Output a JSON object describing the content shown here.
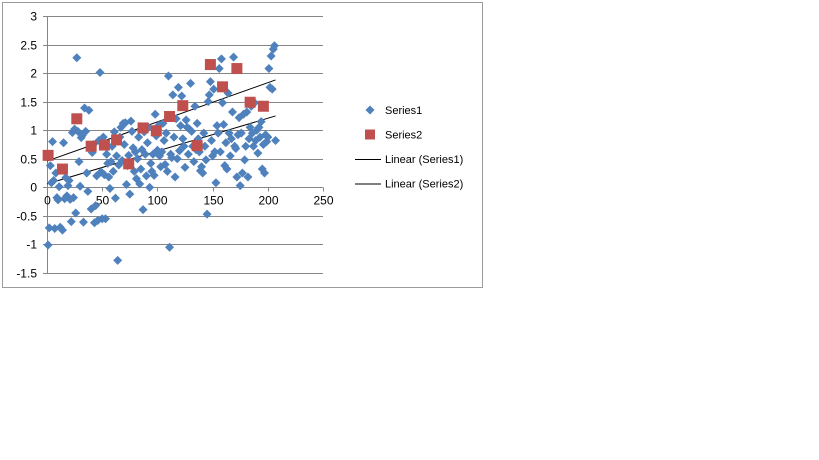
{
  "chart_data": {
    "type": "scatter",
    "title": "",
    "xlabel": "",
    "ylabel": "",
    "xlim": [
      0,
      250
    ],
    "ylim": [
      -1.5,
      3
    ],
    "xticks": [
      0,
      50,
      100,
      150,
      200,
      250
    ],
    "yticks": [
      3,
      2.5,
      2,
      1.5,
      1,
      0.5,
      0,
      -0.5,
      -1,
      -1.5
    ],
    "grid": "horizontal",
    "legend_position": "right",
    "series": [
      {
        "name": "Series1",
        "marker": "diamond",
        "color": "#4F81BD",
        "points": [
          [
            1,
            -1.01
          ],
          [
            2,
            -0.71
          ],
          [
            3,
            0.38
          ],
          [
            4,
            0.08
          ],
          [
            5,
            0.8
          ],
          [
            6,
            0.12
          ],
          [
            7,
            -0.72
          ],
          [
            8,
            0.25
          ],
          [
            9,
            -0.18
          ],
          [
            10,
            -0.22
          ],
          [
            11,
            0.01
          ],
          [
            12,
            -0.7
          ],
          [
            13,
            0.32
          ],
          [
            14,
            -0.75
          ],
          [
            15,
            0.78
          ],
          [
            16,
            -0.2
          ],
          [
            17,
            0.17
          ],
          [
            18,
            -0.15
          ],
          [
            19,
            0.03
          ],
          [
            20,
            0.12
          ],
          [
            21,
            -0.21
          ],
          [
            22,
            -0.6
          ],
          [
            23,
            0.96
          ],
          [
            24,
            -0.18
          ],
          [
            25,
            1.02
          ],
          [
            26,
            -0.45
          ],
          [
            27,
            2.27
          ],
          [
            28,
            0.98
          ],
          [
            29,
            0.45
          ],
          [
            30,
            0.02
          ],
          [
            31,
            0.87
          ],
          [
            32,
            0.91
          ],
          [
            33,
            -0.61
          ],
          [
            34,
            1.39
          ],
          [
            35,
            0.98
          ],
          [
            36,
            0.25
          ],
          [
            37,
            -0.07
          ],
          [
            38,
            1.35
          ],
          [
            39,
            0.68
          ],
          [
            40,
            -0.38
          ],
          [
            41,
            0.61
          ],
          [
            42,
            0.75
          ],
          [
            43,
            -0.62
          ],
          [
            44,
            -0.32
          ],
          [
            45,
            0.2
          ],
          [
            46,
            -0.58
          ],
          [
            47,
            0.82
          ],
          [
            48,
            2.01
          ],
          [
            49,
            0.27
          ],
          [
            50,
            -0.55
          ],
          [
            51,
            0.88
          ],
          [
            52,
            0.22
          ],
          [
            53,
            -0.55
          ],
          [
            54,
            0.58
          ],
          [
            55,
            0.42
          ],
          [
            56,
            0.18
          ],
          [
            57,
            -0.02
          ],
          [
            58,
            0.45
          ],
          [
            59,
            0.72
          ],
          [
            60,
            0.28
          ],
          [
            61,
            0.97
          ],
          [
            62,
            -0.19
          ],
          [
            63,
            0.55
          ],
          [
            64,
            -1.28
          ],
          [
            65,
            0.39
          ],
          [
            66,
            0.88
          ],
          [
            67,
            1.05
          ],
          [
            68,
            0.47
          ],
          [
            69,
            1.12
          ],
          [
            70,
            0.75
          ],
          [
            71,
            1.13
          ],
          [
            72,
            0.05
          ],
          [
            73,
            0.38
          ],
          [
            74,
            0.56
          ],
          [
            75,
            -0.12
          ],
          [
            76,
            1.16
          ],
          [
            77,
            0.98
          ],
          [
            78,
            0.69
          ],
          [
            79,
            0.28
          ],
          [
            80,
            0.62
          ],
          [
            81,
            0.15
          ],
          [
            82,
            0.5
          ],
          [
            83,
            0.88
          ],
          [
            84,
            0.06
          ],
          [
            85,
            0.32
          ],
          [
            86,
            0.66
          ],
          [
            87,
            -0.39
          ],
          [
            88,
            0.97
          ],
          [
            89,
            0.58
          ],
          [
            90,
            0.2
          ],
          [
            91,
            0.78
          ],
          [
            92,
            1.05
          ],
          [
            93,
            0.0
          ],
          [
            94,
            0.42
          ],
          [
            95,
            0.28
          ],
          [
            96,
            0.58
          ],
          [
            97,
            0.21
          ],
          [
            98,
            1.28
          ],
          [
            99,
            0.9
          ],
          [
            100,
            0.65
          ],
          [
            101,
            1.08
          ],
          [
            102,
            0.55
          ],
          [
            103,
            0.36
          ],
          [
            104,
            0.62
          ],
          [
            105,
            1.12
          ],
          [
            106,
            0.82
          ],
          [
            107,
            0.4
          ],
          [
            108,
            0.95
          ],
          [
            109,
            0.28
          ],
          [
            110,
            1.95
          ],
          [
            111,
            -1.05
          ],
          [
            112,
            0.58
          ],
          [
            113,
            0.52
          ],
          [
            114,
            1.62
          ],
          [
            115,
            0.88
          ],
          [
            116,
            0.18
          ],
          [
            117,
            1.2
          ],
          [
            118,
            0.5
          ],
          [
            119,
            1.75
          ],
          [
            120,
            0.64
          ],
          [
            121,
            1.08
          ],
          [
            122,
            1.6
          ],
          [
            123,
            0.85
          ],
          [
            124,
            0.72
          ],
          [
            125,
            0.35
          ],
          [
            126,
            1.18
          ],
          [
            127,
            1.05
          ],
          [
            128,
            0.58
          ],
          [
            129,
            1.02
          ],
          [
            130,
            1.82
          ],
          [
            131,
            0.98
          ],
          [
            132,
            0.72
          ],
          [
            133,
            0.45
          ],
          [
            134,
            1.42
          ],
          [
            135,
            0.66
          ],
          [
            136,
            1.12
          ],
          [
            137,
            0.85
          ],
          [
            138,
            0.62
          ],
          [
            139,
            0.29
          ],
          [
            140,
            0.36
          ],
          [
            141,
            0.25
          ],
          [
            142,
            0.95
          ],
          [
            143,
            0.72
          ],
          [
            144,
            0.48
          ],
          [
            145,
            -0.47
          ],
          [
            146,
            1.5
          ],
          [
            147,
            1.62
          ],
          [
            148,
            1.85
          ],
          [
            149,
            0.82
          ],
          [
            150,
            0.55
          ],
          [
            151,
            1.72
          ],
          [
            152,
            0.62
          ],
          [
            153,
            0.08
          ],
          [
            154,
            1.08
          ],
          [
            155,
            0.95
          ],
          [
            156,
            2.08
          ],
          [
            157,
            0.62
          ],
          [
            158,
            2.25
          ],
          [
            159,
            1.48
          ],
          [
            160,
            1.1
          ],
          [
            161,
            0.38
          ],
          [
            162,
            0.78
          ],
          [
            163,
            0.32
          ],
          [
            164,
            1.65
          ],
          [
            165,
            0.95
          ],
          [
            166,
            0.55
          ],
          [
            167,
            0.85
          ],
          [
            168,
            1.32
          ],
          [
            169,
            2.28
          ],
          [
            170,
            0.72
          ],
          [
            171,
            0.68
          ],
          [
            172,
            0.18
          ],
          [
            173,
            0.92
          ],
          [
            174,
            1.22
          ],
          [
            175,
            0.03
          ],
          [
            176,
            0.95
          ],
          [
            177,
            0.25
          ],
          [
            178,
            1.28
          ],
          [
            179,
            0.48
          ],
          [
            180,
            0.72
          ],
          [
            181,
            1.32
          ],
          [
            182,
            0.18
          ],
          [
            183,
            0.85
          ],
          [
            184,
            1.05
          ],
          [
            185,
            1.42
          ],
          [
            186,
            0.95
          ],
          [
            187,
            0.72
          ],
          [
            188,
            1.48
          ],
          [
            189,
            0.82
          ],
          [
            190,
            1.0
          ],
          [
            191,
            0.6
          ],
          [
            192,
            1.05
          ],
          [
            193,
            0.88
          ],
          [
            194,
            1.15
          ],
          [
            195,
            0.32
          ],
          [
            196,
            0.75
          ],
          [
            197,
            0.25
          ],
          [
            198,
            0.92
          ],
          [
            199,
            0.8
          ],
          [
            200,
            0.88
          ],
          [
            201,
            2.08
          ],
          [
            202,
            1.75
          ],
          [
            203,
            2.3
          ],
          [
            204,
            1.72
          ],
          [
            205,
            2.42
          ],
          [
            206,
            2.48
          ],
          [
            207,
            0.82
          ]
        ]
      },
      {
        "name": "Series2",
        "marker": "square",
        "color": "#C0504D",
        "points": [
          [
            1,
            0.56
          ],
          [
            14,
            0.32
          ],
          [
            27,
            1.2
          ],
          [
            40,
            0.72
          ],
          [
            52,
            0.74
          ],
          [
            63,
            0.83
          ],
          [
            74,
            0.41
          ],
          [
            87,
            1.04
          ],
          [
            99,
            0.99
          ],
          [
            111,
            1.24
          ],
          [
            123,
            1.43
          ],
          [
            136,
            0.73
          ],
          [
            148,
            2.15
          ],
          [
            159,
            1.76
          ],
          [
            172,
            2.08
          ],
          [
            184,
            1.49
          ],
          [
            196,
            1.42
          ]
        ]
      }
    ],
    "trendlines": [
      {
        "name": "Linear (Series1)",
        "color": "#000000",
        "x": [
          0,
          207
        ],
        "y": [
          0.06,
          1.25
        ]
      },
      {
        "name": "Linear (Series2)",
        "color": "#000000",
        "x": [
          0,
          207
        ],
        "y": [
          0.46,
          1.88
        ]
      }
    ],
    "legend": [
      {
        "label": "Series1",
        "kind": "diamond",
        "color": "#4F81BD"
      },
      {
        "label": "Series2",
        "kind": "square",
        "color": "#C0504D"
      },
      {
        "label": "Linear (Series1)",
        "kind": "line",
        "color": "#000000"
      },
      {
        "label": "Linear (Series2)",
        "kind": "line",
        "color": "#000000"
      }
    ]
  }
}
